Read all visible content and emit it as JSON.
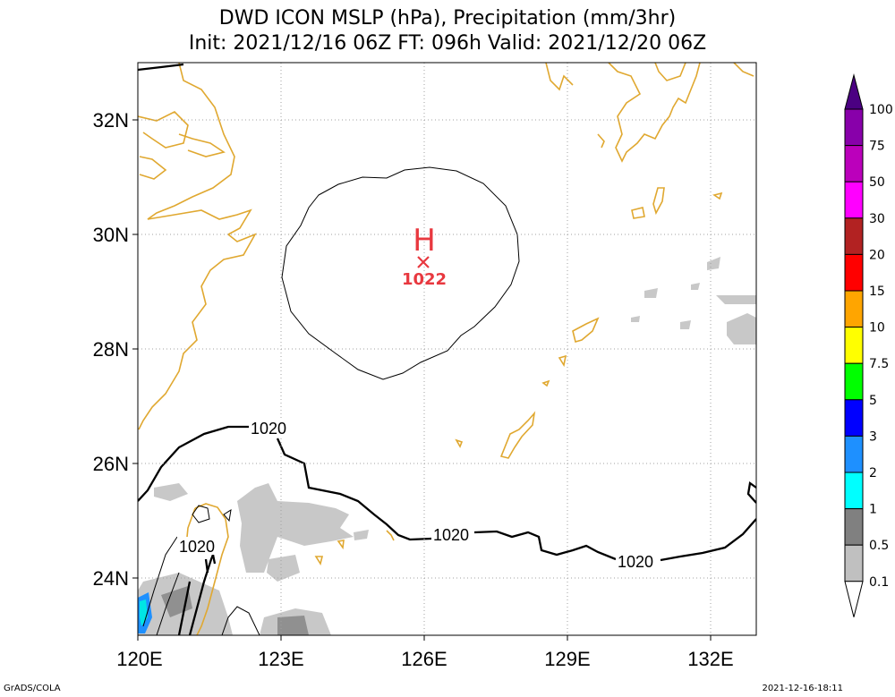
{
  "header": {
    "title_line1": "DWD ICON MSLP (hPa), Precipitation (mm/3hr)",
    "title_line2": "Init: 2021/12/16 06Z  FT: 096h  Valid: 2021/12/20 06Z"
  },
  "axes": {
    "lat_labels": [
      "32N",
      "30N",
      "28N",
      "26N",
      "24N"
    ],
    "lon_labels": [
      "120E",
      "123E",
      "126E",
      "129E",
      "132E"
    ]
  },
  "pressure_center": {
    "symbol": "H",
    "value": "1022",
    "color": "#e8383f"
  },
  "isobar_labels": [
    "1020",
    "1020",
    "1020",
    "1020"
  ],
  "colorbar": {
    "labels": [
      "100",
      "75",
      "50",
      "30",
      "20",
      "15",
      "10",
      "7.5",
      "5",
      "3",
      "2",
      "1",
      "0.5",
      "0.1"
    ],
    "colors": [
      "#8800aa",
      "#bb00bb",
      "#ff00ff",
      "#b22222",
      "#ff0000",
      "#ffa500",
      "#ffff00",
      "#00ff00",
      "#0000ff",
      "#1e90ff",
      "#00ffff",
      "#808080",
      "#c0c0c0",
      "#ffffff"
    ],
    "top_color": "#4b0082"
  },
  "colors": {
    "coastline": "#e0a830",
    "precip_light": "#c0c0c0",
    "precip_mid": "#909090"
  },
  "footer": {
    "left": "GrADS/COLA",
    "right": "2021-12-16-18:11"
  }
}
